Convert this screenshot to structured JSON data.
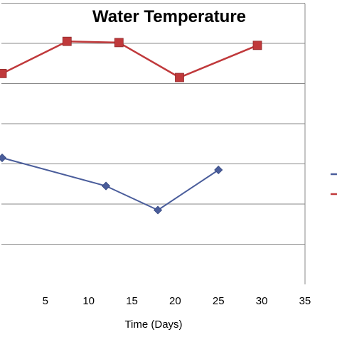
{
  "chart_data": {
    "type": "line",
    "title": "Water Temperature",
    "xlabel": "Time (Days)",
    "ylabel": "",
    "xlim": [
      0,
      35
    ],
    "ylim": [
      0,
      7
    ],
    "xticks": [
      5,
      10,
      15,
      20,
      25,
      30,
      35
    ],
    "grid": true,
    "legend": "right",
    "series": [
      {
        "name": "",
        "color": "#4a5d9b",
        "marker": "diamond",
        "points": [
          [
            0,
            3.15
          ],
          [
            12,
            2.45
          ],
          [
            18,
            1.85
          ],
          [
            25,
            2.85
          ]
        ]
      },
      {
        "name": "",
        "color": "#c0393b",
        "marker": "square",
        "points": [
          [
            0,
            5.25
          ],
          [
            7.5,
            6.05
          ],
          [
            13.5,
            6.02
          ],
          [
            20.5,
            5.15
          ],
          [
            29.5,
            5.95
          ]
        ]
      }
    ]
  }
}
